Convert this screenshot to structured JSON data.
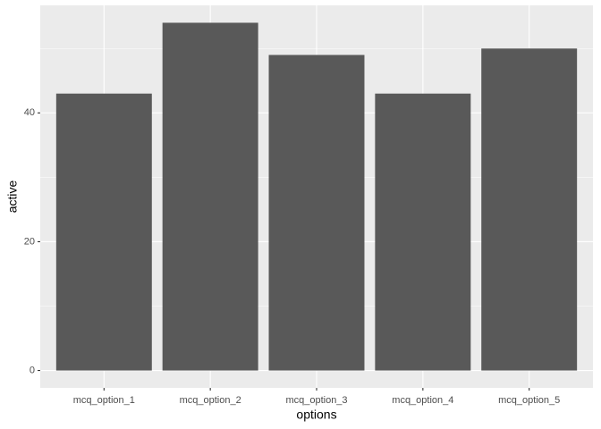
{
  "chart_data": {
    "type": "bar",
    "x_label": "options",
    "y_label": "active",
    "categories": [
      "mcq_option_1",
      "mcq_option_2",
      "mcq_option_3",
      "mcq_option_4",
      "mcq_option_5"
    ],
    "values": [
      43,
      54,
      49,
      43,
      50
    ],
    "color": "#595959",
    "ylim": [
      -2.7,
      56.7
    ],
    "yticks": [
      0,
      20,
      40
    ],
    "y_minor_ticks": [
      10,
      30,
      50
    ],
    "grid": true
  }
}
